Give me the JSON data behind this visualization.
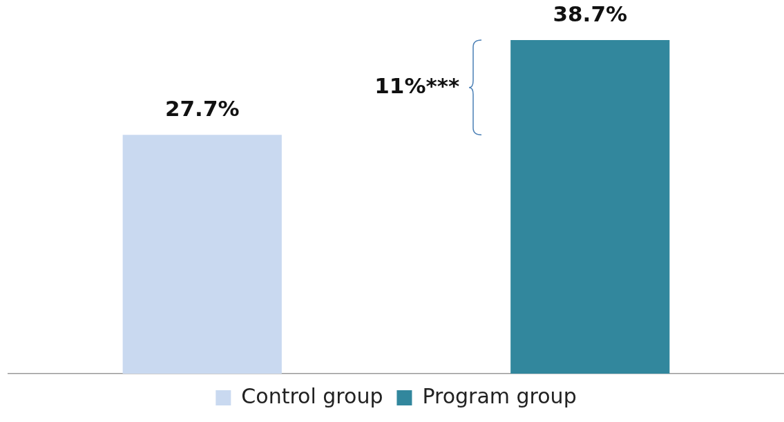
{
  "chart_data": {
    "type": "bar",
    "categories": [
      null,
      null
    ],
    "stacked": true,
    "series": [
      {
        "name": "Control group",
        "color": "#c9d9f0",
        "values": [
          27.7,
          null
        ],
        "value_labels": [
          "27.7%",
          null
        ]
      },
      {
        "name": "Program group",
        "color": "#32879d",
        "values": [
          null,
          38.7
        ],
        "value_labels": [
          null,
          "38.7%"
        ]
      }
    ],
    "annotations": [
      "11%***"
    ],
    "legend": "bottom",
    "grid": false
  }
}
